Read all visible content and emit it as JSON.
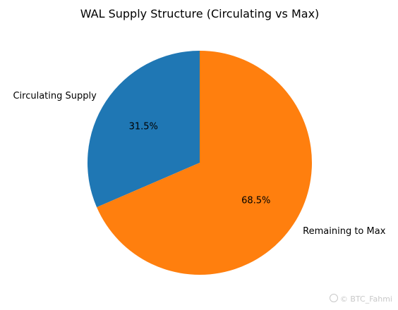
{
  "chart_data": {
    "type": "pie",
    "title": "WAL Supply Structure (Circulating vs Max)",
    "slices": [
      {
        "label": "Circulating Supply",
        "value": 31.5,
        "pct_label": "31.5%",
        "color": "#1f77b4"
      },
      {
        "label": "Remaining to Max",
        "value": 68.5,
        "pct_label": "68.5%",
        "color": "#ff7f0e"
      }
    ],
    "start_angle_deg": 90,
    "direction": "counterclockwise"
  },
  "watermark": {
    "text": "© BTC_Fahmi",
    "icon": "watermark-logo-icon"
  }
}
